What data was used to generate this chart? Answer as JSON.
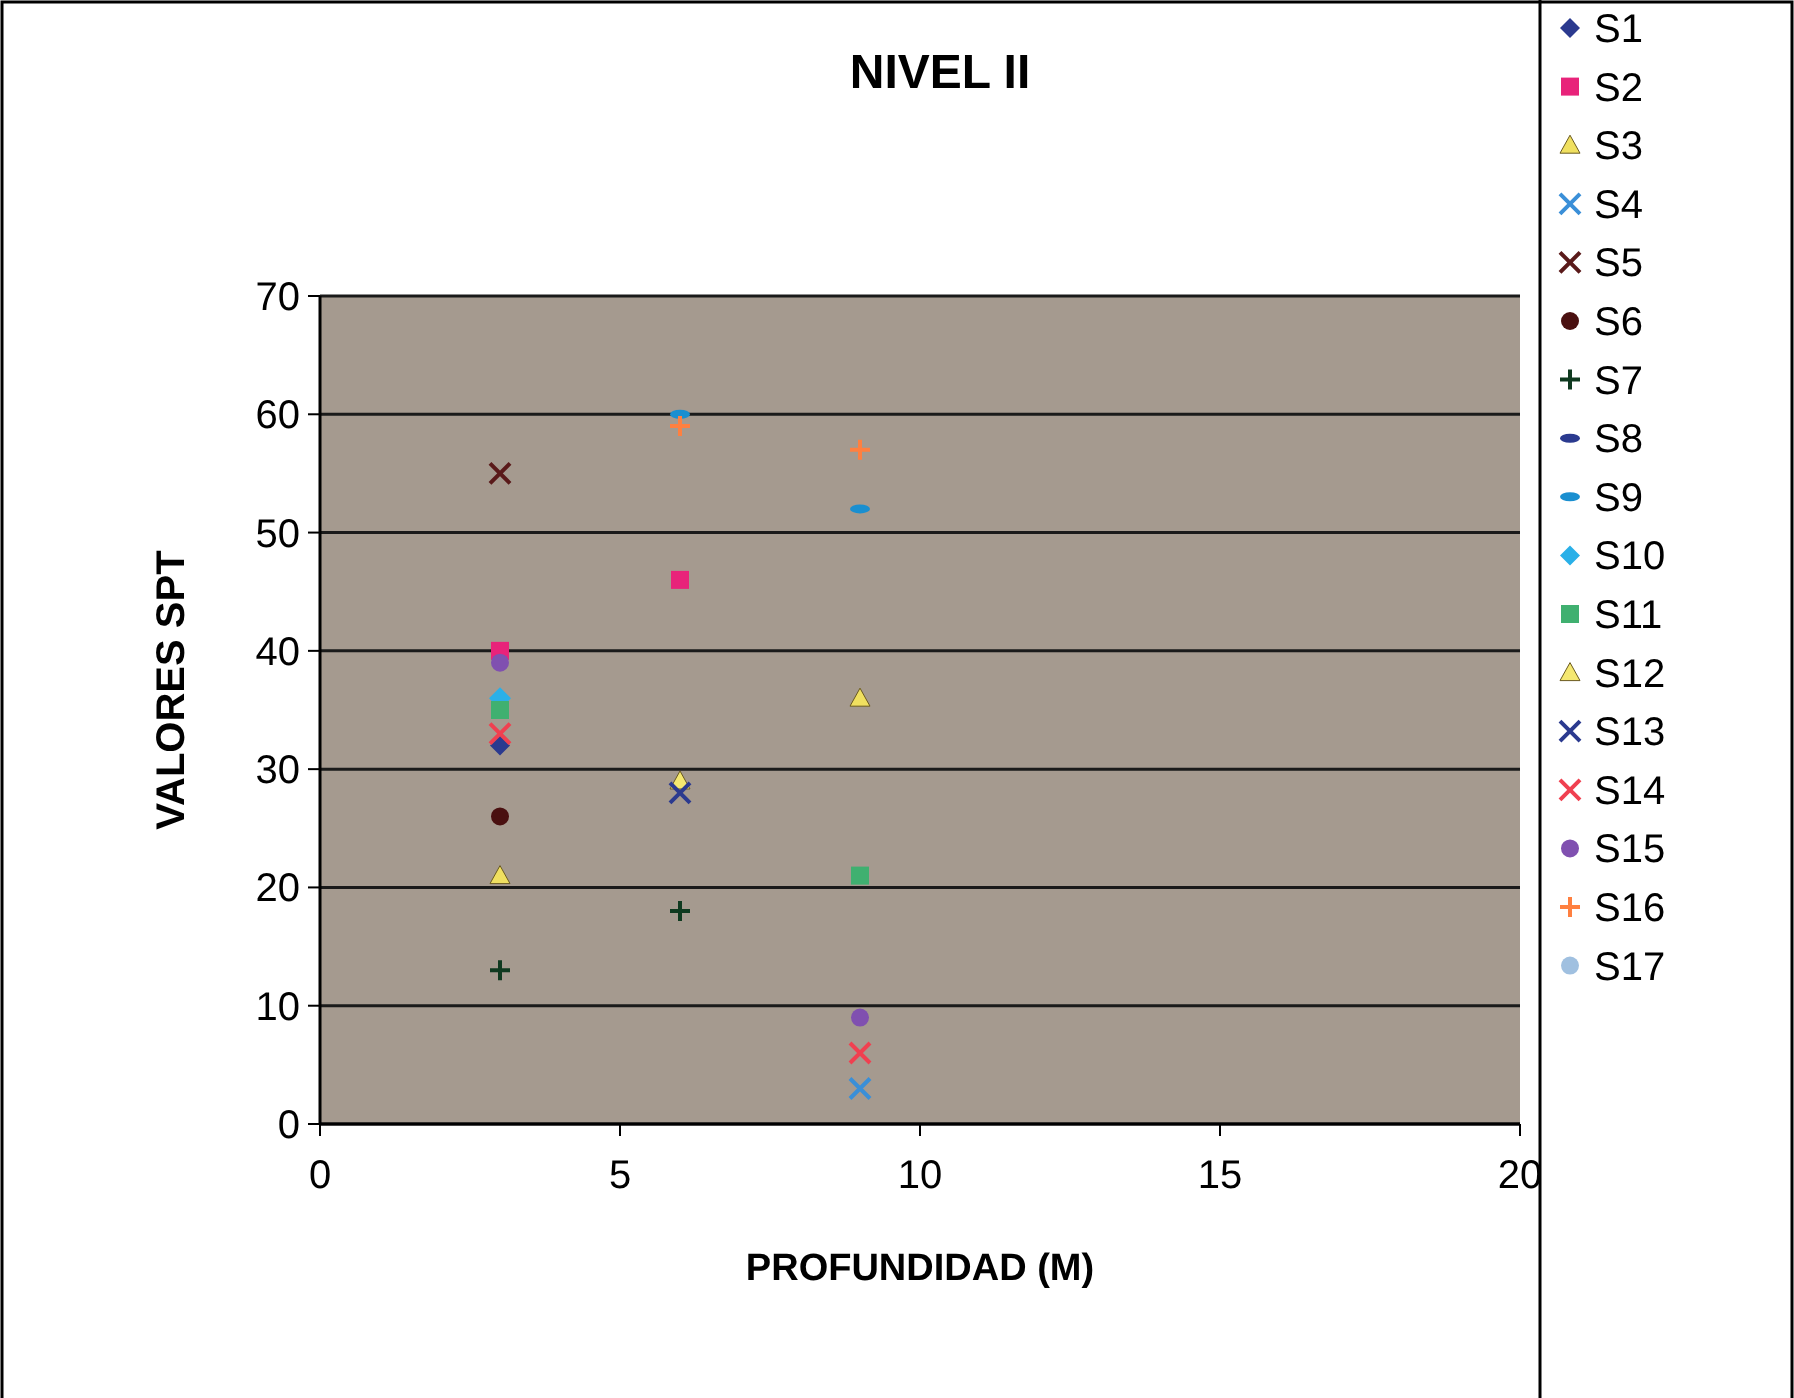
{
  "chart_data": {
    "type": "scatter",
    "title": "NIVEL II",
    "xlabel": "PROFUNDIDAD (M)",
    "ylabel": "VALORES SPT",
    "xlim": [
      0,
      20
    ],
    "xticks": [
      0,
      5,
      10,
      15,
      20
    ],
    "ylim": [
      0,
      70
    ],
    "yticks": [
      0,
      10,
      20,
      30,
      40,
      50,
      60,
      70
    ],
    "grid": "y",
    "legend": "right",
    "series": [
      {
        "name": "S1",
        "color": "#2b3a8f",
        "marker": "diamond",
        "x": [
          3
        ],
        "values": [
          32
        ]
      },
      {
        "name": "S2",
        "color": "#e8237a",
        "marker": "square",
        "x": [
          3,
          6
        ],
        "values": [
          40,
          46
        ]
      },
      {
        "name": "S3",
        "color": "#f0e060",
        "marker": "triangle",
        "x": [
          3,
          9
        ],
        "values": [
          21,
          36
        ]
      },
      {
        "name": "S4",
        "color": "#3a8fd8",
        "marker": "cross",
        "x": [
          9
        ],
        "values": [
          3
        ]
      },
      {
        "name": "S5",
        "color": "#5a1a1a",
        "marker": "cross",
        "x": [
          3
        ],
        "values": [
          55
        ]
      },
      {
        "name": "S6",
        "color": "#4a1010",
        "marker": "circle",
        "x": [
          3
        ],
        "values": [
          26
        ]
      },
      {
        "name": "S7",
        "color": "#0f3a20",
        "marker": "plus",
        "x": [
          3,
          6
        ],
        "values": [
          13,
          18
        ]
      },
      {
        "name": "S8",
        "color": "#2b3a8f"
      },
      {
        "name": "S9",
        "color": "#1a8fd0",
        "x": [
          6,
          9
        ],
        "values": [
          60,
          52
        ]
      },
      {
        "name": "S10",
        "color": "#2ab0e8",
        "marker": "diamond",
        "x": [
          3
        ],
        "values": [
          36
        ]
      },
      {
        "name": "S11",
        "color": "#40b070",
        "marker": "square",
        "x": [
          3,
          9
        ],
        "values": [
          35,
          21
        ]
      },
      {
        "name": "S12",
        "color": "#f5e870",
        "marker": "triangle",
        "x": [
          6
        ],
        "values": [
          29
        ]
      },
      {
        "name": "S13",
        "color": "#2b3a8f",
        "marker": "cross",
        "x": [
          6
        ],
        "values": [
          28
        ]
      },
      {
        "name": "S14",
        "color": "#f04050",
        "marker": "cross",
        "x": [
          3,
          9
        ],
        "values": [
          33,
          6
        ]
      },
      {
        "name": "S15",
        "color": "#8050b0",
        "marker": "circle",
        "x": [
          3,
          9
        ],
        "values": [
          39,
          9
        ]
      },
      {
        "name": "S16",
        "color": "#ff8040",
        "marker": "plus",
        "x": [
          6,
          9
        ],
        "values": [
          59,
          57
        ]
      },
      {
        "name": "S17",
        "color": "#a0c0e0",
        "marker": "circle"
      }
    ]
  }
}
